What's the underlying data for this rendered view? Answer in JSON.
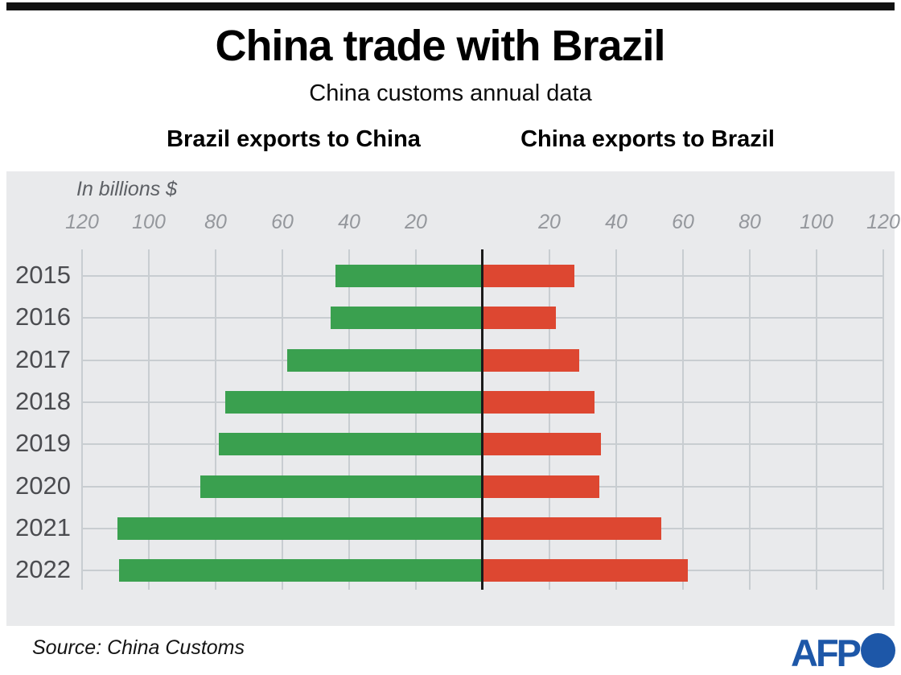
{
  "top_bar": {
    "color": "#121212"
  },
  "header": {
    "title": "China trade with Brazil",
    "subtitle": "China customs annual data",
    "left_heading": "Brazil exports to China",
    "right_heading": "China exports to Brazil"
  },
  "chart_data": {
    "type": "bar",
    "variant": "diverging-horizontal-pyramid",
    "units_label": "In billions $",
    "categories": [
      "2015",
      "2016",
      "2017",
      "2018",
      "2019",
      "2020",
      "2021",
      "2022"
    ],
    "series": [
      {
        "name": "Brazil exports to China",
        "side": "left",
        "color": "#3aa04f",
        "values": [
          44,
          45.5,
          58.5,
          77,
          79,
          84.5,
          109.5,
          109
        ]
      },
      {
        "name": "China exports to Brazil",
        "side": "right",
        "color": "#dd4731",
        "values": [
          27.5,
          22,
          29,
          33.5,
          35.5,
          35,
          53.5,
          61.5
        ]
      }
    ],
    "x_ticks": [
      20,
      40,
      60,
      80,
      100,
      120
    ],
    "axis_range_each_side": [
      0,
      120
    ],
    "grid": true,
    "plot_background": "#e9eaec",
    "gridline_color": "#c8cdd1",
    "center_line_color": "#1b1b1b",
    "tick_label_color": "#94979c",
    "category_label_color": "#4b4c50"
  },
  "footer": {
    "source": "Source: China Customs",
    "afp_logo_text": "AFP",
    "afp_logo_color": "#1d57a8"
  }
}
